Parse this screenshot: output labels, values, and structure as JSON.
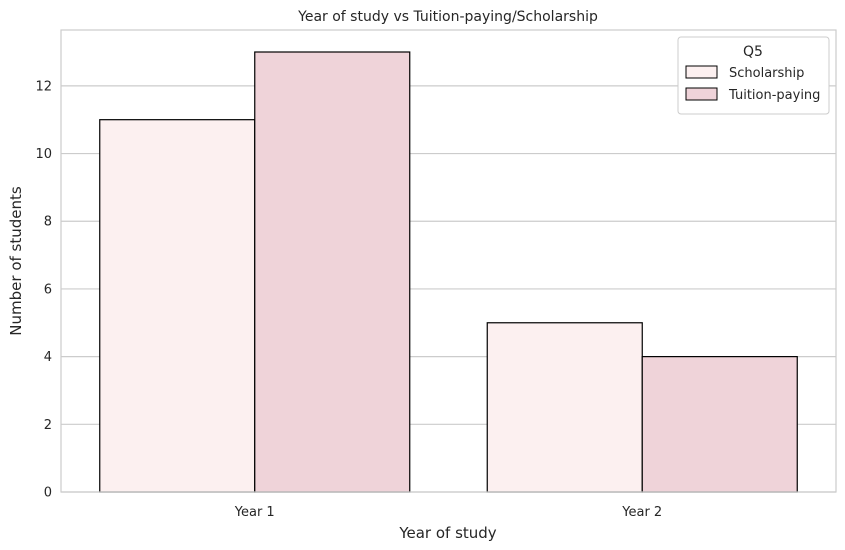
{
  "chart_data": {
    "type": "bar",
    "title": "Year of study vs Tuition-paying/Scholarship",
    "xlabel": "Year of study",
    "ylabel": "Number of students",
    "categories": [
      "Year 1",
      "Year 2"
    ],
    "series": [
      {
        "name": "Scholarship",
        "values": [
          11,
          5
        ],
        "color": "#fcf0f0"
      },
      {
        "name": "Tuition-paying",
        "values": [
          13,
          4
        ],
        "color": "#efd3d9"
      }
    ],
    "ylim": [
      0,
      13.65
    ],
    "yticks": [
      0,
      2,
      4,
      6,
      8,
      10,
      12
    ],
    "grid": "horizontal",
    "legend": {
      "title": "Q5",
      "position": "top-right"
    },
    "colors": {
      "bar_edge": "#000000",
      "grid": "#cccccc",
      "frame": "#cccccc"
    }
  }
}
